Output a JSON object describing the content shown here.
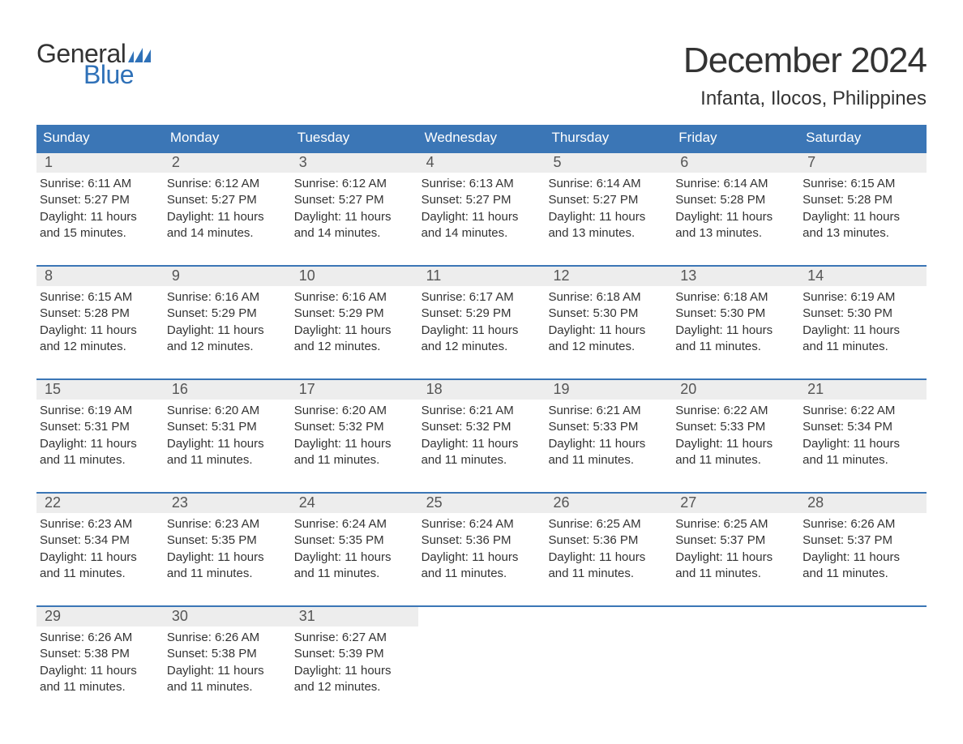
{
  "logo": {
    "word1": "General",
    "word2": "Blue",
    "accent_color": "#2f71b8",
    "text_color": "#333333"
  },
  "header": {
    "month_title": "December 2024",
    "location": "Infanta, Ilocos, Philippines"
  },
  "colors": {
    "header_bar": "#3b76b6",
    "header_text": "#ffffff",
    "day_num_bg": "#ededed",
    "day_num_text": "#555555",
    "body_text": "#333333",
    "week_divider": "#3b76b6",
    "background": "#ffffff"
  },
  "typography": {
    "month_title_pt": 44,
    "location_pt": 24,
    "dow_pt": 17,
    "day_num_pt": 18,
    "body_pt": 15,
    "logo_pt": 32
  },
  "days_of_week": [
    "Sunday",
    "Monday",
    "Tuesday",
    "Wednesday",
    "Thursday",
    "Friday",
    "Saturday"
  ],
  "weeks": [
    [
      {
        "num": "1",
        "sunrise": "Sunrise: 6:11 AM",
        "sunset": "Sunset: 5:27 PM",
        "day1": "Daylight: 11 hours",
        "day2": "and 15 minutes."
      },
      {
        "num": "2",
        "sunrise": "Sunrise: 6:12 AM",
        "sunset": "Sunset: 5:27 PM",
        "day1": "Daylight: 11 hours",
        "day2": "and 14 minutes."
      },
      {
        "num": "3",
        "sunrise": "Sunrise: 6:12 AM",
        "sunset": "Sunset: 5:27 PM",
        "day1": "Daylight: 11 hours",
        "day2": "and 14 minutes."
      },
      {
        "num": "4",
        "sunrise": "Sunrise: 6:13 AM",
        "sunset": "Sunset: 5:27 PM",
        "day1": "Daylight: 11 hours",
        "day2": "and 14 minutes."
      },
      {
        "num": "5",
        "sunrise": "Sunrise: 6:14 AM",
        "sunset": "Sunset: 5:27 PM",
        "day1": "Daylight: 11 hours",
        "day2": "and 13 minutes."
      },
      {
        "num": "6",
        "sunrise": "Sunrise: 6:14 AM",
        "sunset": "Sunset: 5:28 PM",
        "day1": "Daylight: 11 hours",
        "day2": "and 13 minutes."
      },
      {
        "num": "7",
        "sunrise": "Sunrise: 6:15 AM",
        "sunset": "Sunset: 5:28 PM",
        "day1": "Daylight: 11 hours",
        "day2": "and 13 minutes."
      }
    ],
    [
      {
        "num": "8",
        "sunrise": "Sunrise: 6:15 AM",
        "sunset": "Sunset: 5:28 PM",
        "day1": "Daylight: 11 hours",
        "day2": "and 12 minutes."
      },
      {
        "num": "9",
        "sunrise": "Sunrise: 6:16 AM",
        "sunset": "Sunset: 5:29 PM",
        "day1": "Daylight: 11 hours",
        "day2": "and 12 minutes."
      },
      {
        "num": "10",
        "sunrise": "Sunrise: 6:16 AM",
        "sunset": "Sunset: 5:29 PM",
        "day1": "Daylight: 11 hours",
        "day2": "and 12 minutes."
      },
      {
        "num": "11",
        "sunrise": "Sunrise: 6:17 AM",
        "sunset": "Sunset: 5:29 PM",
        "day1": "Daylight: 11 hours",
        "day2": "and 12 minutes."
      },
      {
        "num": "12",
        "sunrise": "Sunrise: 6:18 AM",
        "sunset": "Sunset: 5:30 PM",
        "day1": "Daylight: 11 hours",
        "day2": "and 12 minutes."
      },
      {
        "num": "13",
        "sunrise": "Sunrise: 6:18 AM",
        "sunset": "Sunset: 5:30 PM",
        "day1": "Daylight: 11 hours",
        "day2": "and 11 minutes."
      },
      {
        "num": "14",
        "sunrise": "Sunrise: 6:19 AM",
        "sunset": "Sunset: 5:30 PM",
        "day1": "Daylight: 11 hours",
        "day2": "and 11 minutes."
      }
    ],
    [
      {
        "num": "15",
        "sunrise": "Sunrise: 6:19 AM",
        "sunset": "Sunset: 5:31 PM",
        "day1": "Daylight: 11 hours",
        "day2": "and 11 minutes."
      },
      {
        "num": "16",
        "sunrise": "Sunrise: 6:20 AM",
        "sunset": "Sunset: 5:31 PM",
        "day1": "Daylight: 11 hours",
        "day2": "and 11 minutes."
      },
      {
        "num": "17",
        "sunrise": "Sunrise: 6:20 AM",
        "sunset": "Sunset: 5:32 PM",
        "day1": "Daylight: 11 hours",
        "day2": "and 11 minutes."
      },
      {
        "num": "18",
        "sunrise": "Sunrise: 6:21 AM",
        "sunset": "Sunset: 5:32 PM",
        "day1": "Daylight: 11 hours",
        "day2": "and 11 minutes."
      },
      {
        "num": "19",
        "sunrise": "Sunrise: 6:21 AM",
        "sunset": "Sunset: 5:33 PM",
        "day1": "Daylight: 11 hours",
        "day2": "and 11 minutes."
      },
      {
        "num": "20",
        "sunrise": "Sunrise: 6:22 AM",
        "sunset": "Sunset: 5:33 PM",
        "day1": "Daylight: 11 hours",
        "day2": "and 11 minutes."
      },
      {
        "num": "21",
        "sunrise": "Sunrise: 6:22 AM",
        "sunset": "Sunset: 5:34 PM",
        "day1": "Daylight: 11 hours",
        "day2": "and 11 minutes."
      }
    ],
    [
      {
        "num": "22",
        "sunrise": "Sunrise: 6:23 AM",
        "sunset": "Sunset: 5:34 PM",
        "day1": "Daylight: 11 hours",
        "day2": "and 11 minutes."
      },
      {
        "num": "23",
        "sunrise": "Sunrise: 6:23 AM",
        "sunset": "Sunset: 5:35 PM",
        "day1": "Daylight: 11 hours",
        "day2": "and 11 minutes."
      },
      {
        "num": "24",
        "sunrise": "Sunrise: 6:24 AM",
        "sunset": "Sunset: 5:35 PM",
        "day1": "Daylight: 11 hours",
        "day2": "and 11 minutes."
      },
      {
        "num": "25",
        "sunrise": "Sunrise: 6:24 AM",
        "sunset": "Sunset: 5:36 PM",
        "day1": "Daylight: 11 hours",
        "day2": "and 11 minutes."
      },
      {
        "num": "26",
        "sunrise": "Sunrise: 6:25 AM",
        "sunset": "Sunset: 5:36 PM",
        "day1": "Daylight: 11 hours",
        "day2": "and 11 minutes."
      },
      {
        "num": "27",
        "sunrise": "Sunrise: 6:25 AM",
        "sunset": "Sunset: 5:37 PM",
        "day1": "Daylight: 11 hours",
        "day2": "and 11 minutes."
      },
      {
        "num": "28",
        "sunrise": "Sunrise: 6:26 AM",
        "sunset": "Sunset: 5:37 PM",
        "day1": "Daylight: 11 hours",
        "day2": "and 11 minutes."
      }
    ],
    [
      {
        "num": "29",
        "sunrise": "Sunrise: 6:26 AM",
        "sunset": "Sunset: 5:38 PM",
        "day1": "Daylight: 11 hours",
        "day2": "and 11 minutes."
      },
      {
        "num": "30",
        "sunrise": "Sunrise: 6:26 AM",
        "sunset": "Sunset: 5:38 PM",
        "day1": "Daylight: 11 hours",
        "day2": "and 11 minutes."
      },
      {
        "num": "31",
        "sunrise": "Sunrise: 6:27 AM",
        "sunset": "Sunset: 5:39 PM",
        "day1": "Daylight: 11 hours",
        "day2": "and 12 minutes."
      },
      {
        "empty": true
      },
      {
        "empty": true
      },
      {
        "empty": true
      },
      {
        "empty": true
      }
    ]
  ]
}
